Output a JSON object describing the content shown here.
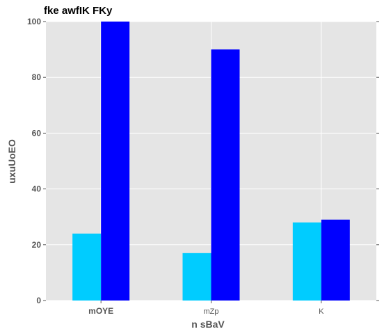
{
  "chart_data": {
    "type": "bar",
    "title": "fke awfIK  FKy",
    "xlabel": "n  sBaV",
    "ylabel": "uxuUoEO",
    "categories": [
      "mOYE",
      "mZp",
      "K"
    ],
    "series": [
      {
        "values": [
          24,
          17,
          28
        ],
        "color": "#00ccff"
      },
      {
        "values": [
          100,
          90,
          29
        ],
        "color": "#0000ff"
      }
    ],
    "ylim": [
      0,
      100
    ],
    "yticks": [
      "0",
      "20",
      "40",
      "60",
      "80",
      "100"
    ],
    "grid": true,
    "background": "#e5e5e5"
  }
}
